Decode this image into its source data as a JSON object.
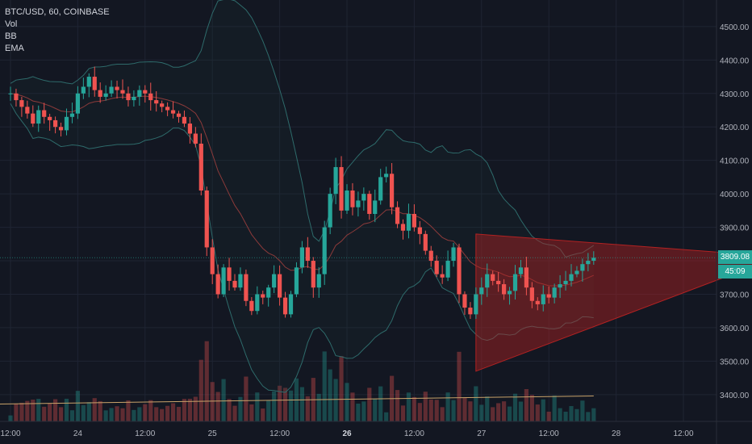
{
  "header": {
    "symbol_line": "BTC/USD, 60, COINBASE",
    "indicators": [
      "Vol",
      "BB",
      "EMA"
    ]
  },
  "price_tag": {
    "value": "3809.08",
    "countdown": "45:09"
  },
  "colors": {
    "up": "#26a69a",
    "down": "#ef5350",
    "bb_band": "#2e6b6b",
    "ema": "#8b3a3a",
    "triangle": "#b22222",
    "vol_ma": "#c9a36a",
    "tag_price": "#26a69a",
    "tag_timer": "#26a69a"
  },
  "chart_data": {
    "type": "candlestick",
    "symbol": "BTC/USD",
    "interval": "60",
    "exchange": "COINBASE",
    "ylim": [
      3320,
      4560
    ],
    "yticks": [
      3400,
      3500,
      3600,
      3700,
      3800,
      3900,
      4000,
      4100,
      4200,
      4300,
      4400,
      4500
    ],
    "ytick_labels": [
      "3400.00",
      "3500.00",
      "3600.00",
      "3700.00",
      "3800.00",
      "3900.00",
      "4000.00",
      "4100.00",
      "4200.00",
      "4300.00",
      "4400.00",
      "4500.00"
    ],
    "xticks": [
      {
        "label": "12:00",
        "bold": false,
        "t": 0
      },
      {
        "label": "24",
        "bold": false,
        "t": 12
      },
      {
        "label": "12:00",
        "bold": false,
        "t": 24
      },
      {
        "label": "25",
        "bold": false,
        "t": 36
      },
      {
        "label": "12:00",
        "bold": false,
        "t": 48
      },
      {
        "label": "26",
        "bold": true,
        "t": 60
      },
      {
        "label": "12:00",
        "bold": false,
        "t": 72
      },
      {
        "label": "27",
        "bold": false,
        "t": 84
      },
      {
        "label": "12:00",
        "bold": false,
        "t": 96
      },
      {
        "label": "28",
        "bold": false,
        "t": 108
      },
      {
        "label": "12:00",
        "bold": false,
        "t": 120
      }
    ],
    "candles_close": [
      4300,
      4280,
      4260,
      4240,
      4210,
      4250,
      4230,
      4220,
      4200,
      4190,
      4230,
      4240,
      4300,
      4320,
      4350,
      4310,
      4290,
      4300,
      4320,
      4310,
      4300,
      4280,
      4290,
      4310,
      4300,
      4280,
      4270,
      4260,
      4250,
      4240,
      4230,
      4210,
      4180,
      4150,
      4010,
      3840,
      3760,
      3700,
      3780,
      3740,
      3720,
      3760,
      3680,
      3650,
      3700,
      3690,
      3720,
      3760,
      3690,
      3640,
      3700,
      3780,
      3840,
      3800,
      3720,
      3760,
      3900,
      4000,
      4080,
      3950,
      4010,
      3960,
      3980,
      4000,
      3940,
      3980,
      4050,
      4060,
      3960,
      3910,
      3890,
      3940,
      3900,
      3880,
      3830,
      3800,
      3760,
      3750,
      3800,
      3840,
      3700,
      3660,
      3640,
      3700,
      3720,
      3760,
      3740,
      3730,
      3700,
      3710,
      3760,
      3780,
      3720,
      3680,
      3670,
      3700,
      3690,
      3720,
      3730,
      3740,
      3760,
      3770,
      3790,
      3800,
      3809
    ],
    "volume_ma_level": 3372,
    "bollinger_note": "BB upper/lower and EMA overlays",
    "triangle": {
      "apex_t": 137,
      "apex_price": 3812,
      "top_t": 83,
      "top_price": 3880,
      "bottom_t": 83,
      "bottom_price": 3470
    }
  }
}
